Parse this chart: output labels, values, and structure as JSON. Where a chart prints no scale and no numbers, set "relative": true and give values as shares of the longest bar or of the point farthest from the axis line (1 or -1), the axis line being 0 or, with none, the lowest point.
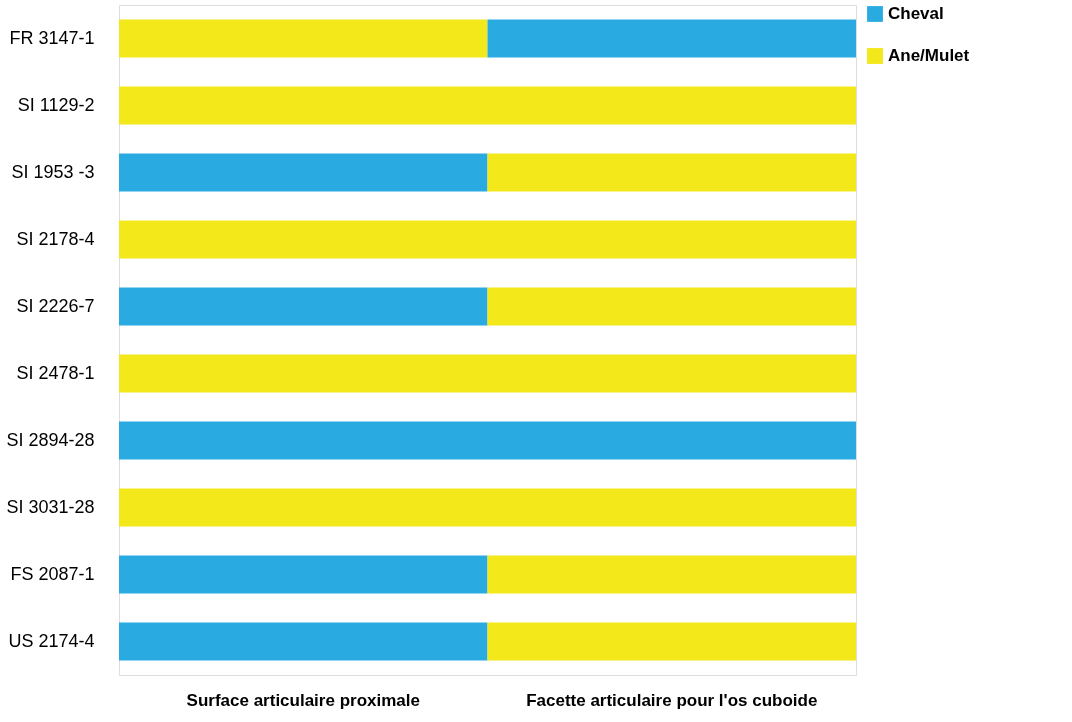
{
  "chart_data": {
    "type": "bar",
    "orientation": "horizontal",
    "relative": true,
    "stacked": true,
    "categories": [
      "FR 3147-1",
      "SI 1129-2",
      "SI 1953 -3",
      "SI 2178-4",
      "SI 2226-7",
      "SI 2478-1",
      "SI 2894-28",
      "SI 3031-28",
      "FS 2087-1",
      "US 2174-4"
    ],
    "series": [
      {
        "color": "#f2e81a",
        "values": [
          0.5,
          0,
          0,
          0,
          0,
          0,
          0,
          0,
          0,
          0
        ]
      },
      {
        "name": "Cheval",
        "color": "#29abe2",
        "values": [
          0.5,
          0,
          0.5,
          0,
          0.5,
          0,
          1,
          0,
          0.5,
          0.5
        ]
      },
      {
        "name": "Ane/Mulet",
        "color": "#f2e81a",
        "values": [
          0,
          1,
          0.5,
          1,
          0.5,
          1,
          0,
          1,
          0.5,
          0.5
        ]
      }
    ],
    "annotations": [
      "Surface articulaire proximale",
      "Facette articulaire pour l'os cuboide"
    ],
    "legend": "right"
  }
}
